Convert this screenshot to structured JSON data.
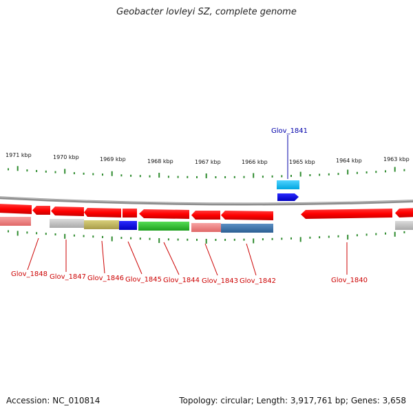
{
  "title": "Geobacter lovleyi SZ, complete genome",
  "footer": {
    "accession": "Accession: NC_010814",
    "stats": "Topology: circular; Length: 3,917,761 bp; Genes: 3,658"
  },
  "colors": {
    "backbone": "#8c8c8c",
    "tick": "#2e8b2e",
    "red_label": "#cc0000",
    "blue_label": "#0000aa"
  },
  "kbp_labels": [
    "1971 kbp",
    "1970 kbp",
    "1969 kbp",
    "1968 kbp",
    "1967 kbp",
    "1966 kbp",
    "1965 kbp",
    "1964 kbp",
    "1963 kbp"
  ],
  "genes": [
    {
      "label": "Glov_1848",
      "color": "red"
    },
    {
      "label": "Glov_1847",
      "color": "red"
    },
    {
      "label": "Glov_1846",
      "color": "red"
    },
    {
      "label": "Glov_1845",
      "color": "red"
    },
    {
      "label": "Glov_1844",
      "color": "red"
    },
    {
      "label": "Glov_1843",
      "color": "red"
    },
    {
      "label": "Glov_1842",
      "color": "red"
    },
    {
      "label": "Glov_1841",
      "color": "blue"
    },
    {
      "label": "Glov_1840",
      "color": "red"
    }
  ]
}
